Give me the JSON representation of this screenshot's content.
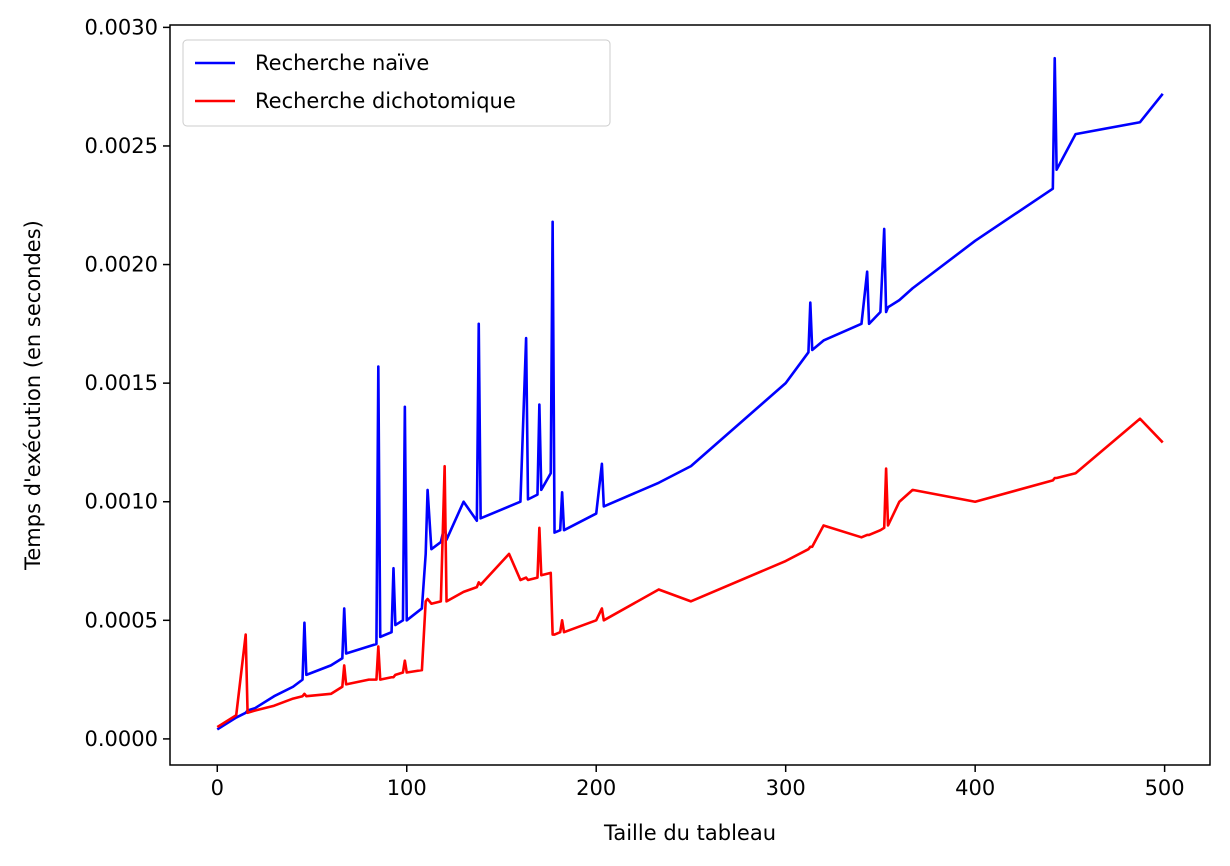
{
  "chart_data": {
    "type": "line",
    "xlabel": "Taille du tableau",
    "ylabel": "Temps d'exécution (en secondes)",
    "x": [
      0,
      10,
      15,
      16,
      20,
      30,
      40,
      45,
      46,
      47,
      60,
      66,
      67,
      68,
      80,
      84,
      85,
      86,
      92,
      93,
      94,
      98,
      99,
      100,
      108,
      110,
      111,
      113,
      118,
      120,
      121,
      130,
      137,
      138,
      139,
      154,
      160,
      163,
      164,
      169,
      170,
      171,
      176,
      177,
      178,
      181,
      182,
      183,
      200,
      203,
      204,
      233,
      250,
      300,
      312,
      313,
      314,
      320,
      340,
      343,
      344,
      350,
      352,
      353,
      354,
      360,
      367,
      400,
      441,
      442,
      443,
      453,
      487,
      499
    ],
    "series": [
      {
        "name": "Recherche naïve",
        "color": "#0000ff",
        "values": [
          4e-05,
          9e-05,
          0.00011,
          0.00012,
          0.00013,
          0.00018,
          0.00022,
          0.00025,
          0.00049,
          0.00027,
          0.00031,
          0.00034,
          0.00055,
          0.00036,
          0.00039,
          0.0004,
          0.00157,
          0.00043,
          0.00045,
          0.00072,
          0.00048,
          0.0005,
          0.0014,
          0.0005,
          0.00055,
          0.00078,
          0.00105,
          0.0008,
          0.00083,
          0.0009,
          0.00084,
          0.001,
          0.00092,
          0.00175,
          0.00093,
          0.00098,
          0.001,
          0.00169,
          0.00101,
          0.00103,
          0.00141,
          0.00105,
          0.00112,
          0.00218,
          0.00087,
          0.00088,
          0.00104,
          0.00088,
          0.00095,
          0.00116,
          0.00098,
          0.00108,
          0.00115,
          0.0015,
          0.00163,
          0.00184,
          0.00164,
          0.00168,
          0.00175,
          0.00197,
          0.00175,
          0.0018,
          0.00215,
          0.0018,
          0.00182,
          0.00185,
          0.0019,
          0.0021,
          0.00232,
          0.00287,
          0.0024,
          0.00255,
          0.0026,
          0.00272
        ]
      },
      {
        "name": "Recherche dichotomique",
        "color": "#ff0000",
        "values": [
          5e-05,
          0.0001,
          0.00044,
          0.00011,
          0.00012,
          0.00014,
          0.00017,
          0.00018,
          0.00019,
          0.00018,
          0.00019,
          0.00022,
          0.00031,
          0.00023,
          0.00025,
          0.00025,
          0.00039,
          0.00025,
          0.00026,
          0.00026,
          0.00027,
          0.00028,
          0.00033,
          0.00028,
          0.00029,
          0.00058,
          0.00059,
          0.00057,
          0.00058,
          0.00115,
          0.00058,
          0.00062,
          0.00064,
          0.00066,
          0.00065,
          0.00078,
          0.00067,
          0.00068,
          0.00067,
          0.00068,
          0.00089,
          0.00069,
          0.0007,
          0.00044,
          0.00044,
          0.00045,
          0.0005,
          0.00045,
          0.0005,
          0.00055,
          0.0005,
          0.00063,
          0.00058,
          0.00075,
          0.0008,
          0.00081,
          0.00081,
          0.0009,
          0.00085,
          0.00086,
          0.00086,
          0.00088,
          0.00089,
          0.00114,
          0.0009,
          0.001,
          0.00105,
          0.001,
          0.00109,
          0.0011,
          0.0011,
          0.00112,
          0.00135,
          0.00125
        ]
      }
    ],
    "xlim": [
      -24.95,
      523.95
    ],
    "xticks": [
      0,
      100,
      200,
      300,
      400,
      500
    ],
    "ylim": [
      -0.00011,
      0.00301
    ],
    "yticks": [
      {
        "value": 0,
        "label": "0.0000"
      },
      {
        "value": 0.0005,
        "label": "0.0005"
      },
      {
        "value": 0.001,
        "label": "0.0010"
      },
      {
        "value": 0.0015,
        "label": "0.0015"
      },
      {
        "value": 0.002,
        "label": "0.0020"
      },
      {
        "value": 0.0025,
        "label": "0.0025"
      },
      {
        "value": 0.003,
        "label": "0.0030"
      }
    ],
    "legend": "upper left"
  }
}
